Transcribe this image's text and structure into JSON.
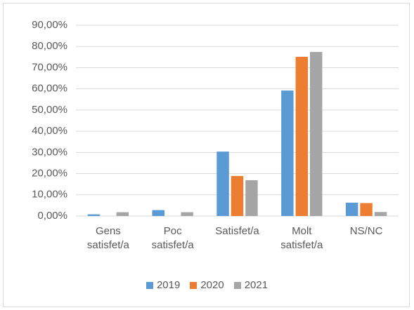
{
  "chart_data": {
    "type": "bar",
    "categories": [
      "Gens satisfet/a",
      "Poc satisfet/a",
      "Satisfet/a",
      "Molt satisfet/a",
      "NS/NC"
    ],
    "series": [
      {
        "name": "2019",
        "color": "#5b9bd5",
        "values": [
          0.8,
          2.8,
          30.4,
          59.2,
          6.3
        ]
      },
      {
        "name": "2020",
        "color": "#ed7d31",
        "values": [
          0,
          0,
          18.9,
          75.1,
          6.1
        ]
      },
      {
        "name": "2021",
        "color": "#a5a5a5",
        "values": [
          1.8,
          1.8,
          16.9,
          77.4,
          1.9
        ]
      }
    ],
    "ylim": [
      0,
      90
    ],
    "yticks": [
      {
        "value": 0,
        "label": "0,00%"
      },
      {
        "value": 10,
        "label": "10,00%"
      },
      {
        "value": 20,
        "label": "20,00%"
      },
      {
        "value": 30,
        "label": "30,00%"
      },
      {
        "value": 40,
        "label": "40,00%"
      },
      {
        "value": 50,
        "label": "50,00%"
      },
      {
        "value": 60,
        "label": "60,00%"
      },
      {
        "value": 70,
        "label": "70,00%"
      },
      {
        "value": 80,
        "label": "80,00%"
      },
      {
        "value": 90,
        "label": "90,00%"
      }
    ],
    "grid": true,
    "legend": "bottom"
  }
}
